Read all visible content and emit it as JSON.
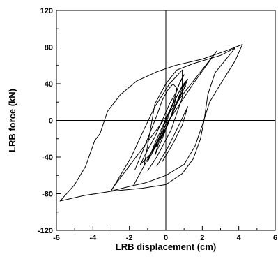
{
  "chart_data": {
    "type": "line",
    "xlabel": "LRB displacement (cm)",
    "ylabel": "LRB force (kN)",
    "xlim": [
      -6,
      6
    ],
    "ylim": [
      -120,
      120
    ],
    "xticks": [
      -6,
      -4,
      -2,
      0,
      2,
      4,
      6
    ],
    "xtick_labels": [
      "-6",
      "-4",
      "-2",
      "0",
      "2",
      "4",
      "6"
    ],
    "yticks": [
      -120,
      -80,
      -40,
      0,
      40,
      80,
      120
    ],
    "ytick_labels": [
      "-120",
      "-80",
      "-40",
      "0",
      "40",
      "80",
      "120"
    ],
    "zero_lines": true,
    "grid": false,
    "series": [
      {
        "values": [
          [
            -1.2,
            -50
          ],
          [
            -0.6,
            18
          ],
          [
            0.0,
            40
          ],
          [
            0.6,
            55
          ],
          [
            1.5,
            62
          ],
          [
            3.0,
            71
          ],
          [
            3.8,
            79
          ],
          [
            2.7,
            52
          ],
          [
            2.3,
            28
          ],
          [
            2.1,
            0
          ],
          [
            1.9,
            -20
          ],
          [
            1.5,
            -42
          ],
          [
            0.9,
            -58
          ],
          [
            0.0,
            -70
          ],
          [
            -1.3,
            -74
          ],
          [
            -2.9,
            -77
          ],
          [
            -4.5,
            -82
          ],
          [
            -5.8,
            -88
          ],
          [
            -5.0,
            -70
          ],
          [
            -4.4,
            -50
          ],
          [
            -3.9,
            -22
          ],
          [
            -3.6,
            -14
          ],
          [
            -3.2,
            10
          ],
          [
            -2.5,
            28
          ],
          [
            -1.6,
            43
          ],
          [
            -0.5,
            53
          ],
          [
            0.5,
            60
          ],
          [
            2.0,
            67
          ],
          [
            3.3,
            76
          ],
          [
            4.2,
            83
          ],
          [
            3.8,
            65
          ],
          [
            3.1,
            43
          ],
          [
            2.4,
            20
          ],
          [
            2.0,
            -5
          ],
          [
            1.6,
            -28
          ],
          [
            1.0,
            -48
          ],
          [
            0.0,
            -60
          ],
          [
            -1.1,
            -68
          ],
          [
            -2.0,
            -72
          ],
          [
            -3.0,
            -77
          ],
          [
            -1.9,
            -40
          ],
          [
            -1.2,
            -10
          ],
          [
            -0.6,
            15
          ],
          [
            0.2,
            40
          ],
          [
            0.9,
            55
          ],
          [
            0.9,
            25
          ],
          [
            0.3,
            -10
          ],
          [
            -0.5,
            -40
          ],
          [
            -1.0,
            -55
          ]
        ]
      },
      {
        "values": [
          [
            -1.7,
            -54
          ],
          [
            -1.2,
            -30
          ],
          [
            -0.8,
            -10
          ],
          [
            -0.5,
            5
          ],
          [
            -0.2,
            22
          ],
          [
            0.1,
            33
          ],
          [
            0.4,
            40
          ],
          [
            0.6,
            35
          ],
          [
            0.5,
            20
          ],
          [
            0.3,
            5
          ],
          [
            0.0,
            -10
          ],
          [
            -0.4,
            -25
          ],
          [
            -0.9,
            -38
          ],
          [
            -1.4,
            -48
          ],
          [
            -1.1,
            -36
          ],
          [
            -0.6,
            -18
          ],
          [
            -0.2,
            0
          ],
          [
            0.2,
            18
          ],
          [
            0.6,
            32
          ],
          [
            0.8,
            43
          ],
          [
            1.0,
            50
          ],
          [
            0.9,
            46
          ],
          [
            0.7,
            38
          ],
          [
            0.4,
            20
          ],
          [
            0.1,
            2
          ],
          [
            -0.2,
            -15
          ],
          [
            -0.6,
            -30
          ],
          [
            -1.0,
            -45
          ],
          [
            -0.6,
            -25
          ],
          [
            -0.1,
            -3
          ],
          [
            0.3,
            15
          ],
          [
            0.7,
            30
          ],
          [
            1.1,
            42
          ],
          [
            0.8,
            30
          ],
          [
            0.5,
            15
          ],
          [
            0.1,
            -5
          ],
          [
            -0.3,
            -18
          ],
          [
            -0.7,
            -32
          ],
          [
            -0.3,
            -15
          ],
          [
            0.1,
            5
          ],
          [
            0.5,
            22
          ],
          [
            0.9,
            38
          ],
          [
            1.2,
            45
          ],
          [
            1.0,
            35
          ],
          [
            0.6,
            18
          ],
          [
            0.2,
            0
          ],
          [
            -0.2,
            -20
          ],
          [
            -0.6,
            -38
          ],
          [
            -0.4,
            -25
          ],
          [
            0.0,
            -8
          ],
          [
            0.4,
            10
          ],
          [
            0.8,
            28
          ],
          [
            1.1,
            38
          ]
        ]
      },
      {
        "values": [
          [
            -0.5,
            -50
          ],
          [
            0.1,
            -30
          ],
          [
            0.6,
            -10
          ],
          [
            1.2,
            15
          ],
          [
            0.9,
            -5
          ],
          [
            0.4,
            -25
          ],
          [
            -0.2,
            -45
          ]
        ]
      },
      {
        "values": [
          [
            -3.0,
            -76
          ],
          [
            -0.5,
            -10
          ],
          [
            1.0,
            30
          ],
          [
            2.8,
            76
          ],
          [
            1.5,
            40
          ],
          [
            0.0,
            -5
          ],
          [
            -1.8,
            -72
          ]
        ]
      }
    ]
  }
}
